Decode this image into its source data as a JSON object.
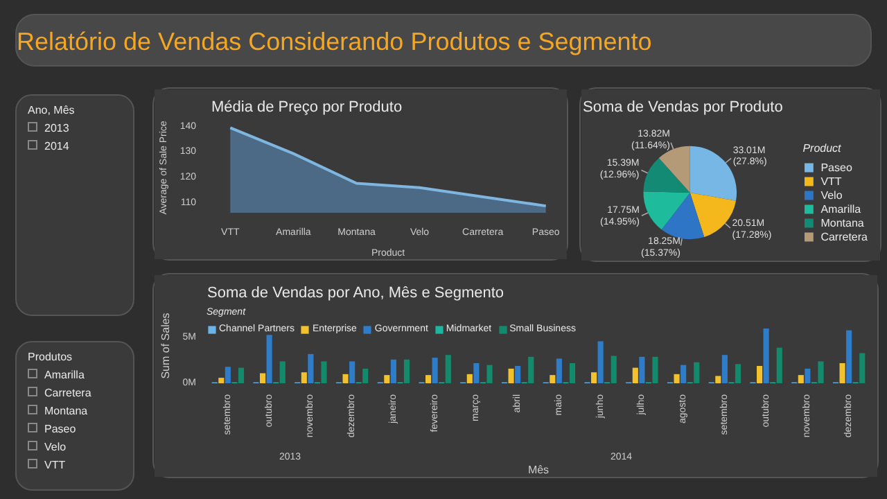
{
  "chart_data": [
    {
      "type": "other",
      "title": "Relatório de Vendas Considerando Produtos e Segmento"
    },
    {
      "type": "other",
      "title": "Ano, Mês",
      "categories": [
        "2013",
        "2014"
      ]
    },
    {
      "type": "area",
      "title": "Média de Preço por Produto",
      "xlabel": "Product",
      "ylabel": "Average of Sale Price",
      "categories": [
        "VTT",
        "Amarilla",
        "Montana",
        "Velo",
        "Carretera",
        "Paseo"
      ],
      "values": [
        139.0,
        128.8,
        117.1,
        115.4,
        111.8,
        108.2
      ],
      "color": "#4f6f8f",
      "ylim": [
        105.5,
        141
      ],
      "yticks": [
        110,
        120,
        130,
        140
      ],
      "grid": false
    },
    {
      "type": "pie",
      "title": "Soma de Vendas por Produto",
      "legend_title": "Product",
      "legend": "right",
      "categories": [
        "Paseo",
        "VTT",
        "Velo",
        "Amarilla",
        "Montana",
        "Carretera"
      ],
      "values": [
        27.8,
        17.28,
        15.37,
        14.95,
        12.96,
        11.64
      ],
      "value_labels": [
        "33.01M (27.8%)",
        "20.51M (17.28%)",
        "18.25M (15.37%)",
        "17.75M (14.95%)",
        "15.39M (12.96%)",
        "13.82M (11.64%)"
      ],
      "colors": [
        "#76b7e6",
        "#f4b81c",
        "#2e76c5",
        "#1ebc9c",
        "#138a74",
        "#b59a78"
      ]
    },
    {
      "type": "other",
      "title": "Produtos",
      "categories": [
        "Amarilla",
        "Carretera",
        "Montana",
        "Paseo",
        "Velo",
        "VTT"
      ]
    },
    {
      "type": "bar",
      "title": "Soma de Vendas por Ano, Mês e Segmento",
      "xlabel": "Mês",
      "ylabel": "Sum of Sales",
      "legend_title": "Segment",
      "legend": "top left",
      "grid": false,
      "annotations": [
        "2013",
        "2014"
      ],
      "categories": [
        "setembro",
        "outubro",
        "novembro",
        "dezembro",
        "janeiro",
        "fevereiro",
        "março",
        "abril",
        "maio",
        "junho",
        "julho",
        "agosto",
        "setembro",
        "outubro",
        "novembro",
        "dezembro"
      ],
      "ylim": [
        0,
        8.2
      ],
      "yticks": [
        {
          "value": 0,
          "label": "0M"
        },
        {
          "value": 5,
          "label": "5M"
        }
      ],
      "series": [
        {
          "name": "Channel Partners",
          "color": "#6cb4e8",
          "values": [
            0.1,
            0.1,
            0.1,
            0.1,
            0.1,
            0.1,
            0.1,
            0.1,
            0.1,
            0.1,
            0.1,
            0.1,
            0.1,
            0.1,
            0.1,
            0.1
          ]
        },
        {
          "name": "Enterprise",
          "color": "#f2c12e",
          "values": [
            0.6,
            1.1,
            1.2,
            1.0,
            0.9,
            0.9,
            1.0,
            1.6,
            0.9,
            1.2,
            1.7,
            1.0,
            0.8,
            1.9,
            0.9,
            2.2
          ]
        },
        {
          "name": "Government",
          "color": "#2f7dc9",
          "values": [
            1.8,
            5.3,
            3.2,
            2.4,
            2.6,
            2.8,
            2.2,
            1.9,
            2.7,
            4.6,
            2.9,
            2.0,
            3.1,
            6.0,
            1.6,
            5.8
          ]
        },
        {
          "name": "Midmarket",
          "color": "#1cb5a0",
          "values": [
            0.1,
            0.1,
            0.1,
            0.1,
            0.1,
            0.1,
            0.1,
            0.1,
            0.1,
            0.1,
            0.1,
            0.1,
            0.1,
            0.1,
            0.1,
            0.1
          ]
        },
        {
          "name": "Small Business",
          "color": "#148a6c",
          "values": [
            1.7,
            2.4,
            2.4,
            1.6,
            2.6,
            3.1,
            2.0,
            2.9,
            2.2,
            3.0,
            2.9,
            2.3,
            2.1,
            3.9,
            2.4,
            3.3
          ]
        }
      ]
    }
  ]
}
